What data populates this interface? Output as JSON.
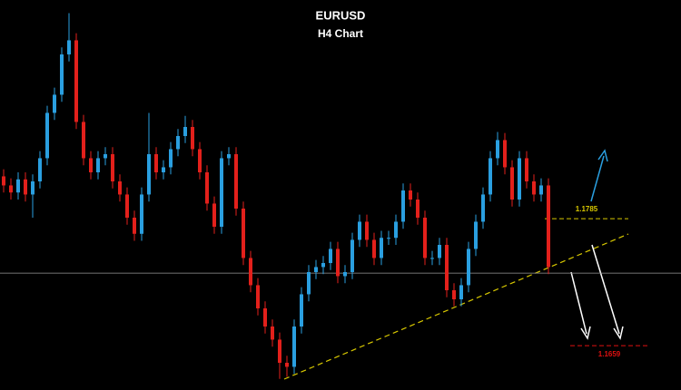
{
  "chart_data": {
    "type": "candlestick",
    "title": "EURUSD",
    "subtitle": "H4 Chart",
    "ylim": [
      1.1615,
      1.2002
    ],
    "up_color": "#2a9fe0",
    "down_color": "#e3201b",
    "open": [
      1.1827,
      1.1818,
      1.1811,
      1.1824,
      1.1809,
      1.1822,
      1.1845,
      1.189,
      1.1908,
      1.1948,
      1.1962,
      1.1881,
      1.1845,
      1.1831,
      1.1845,
      1.1849,
      1.1822,
      1.1809,
      1.1786,
      1.177,
      1.1809,
      1.1849,
      1.1831,
      1.1836,
      1.1854,
      1.1867,
      1.1876,
      1.1854,
      1.1831,
      1.18,
      1.1777,
      1.1845,
      1.1849,
      1.1795,
      1.1746,
      1.1719,
      1.1696,
      1.1678,
      1.1665,
      1.1642,
      1.1638,
      1.1678,
      1.171,
      1.1732,
      1.1737,
      1.1741,
      1.1755,
      1.1728,
      1.1732,
      1.1764,
      1.1782,
      1.1764,
      1.1746,
      1.1766,
      1.1766,
      1.1782,
      1.1813,
      1.1804,
      1.1786,
      1.1746,
      1.1746,
      1.1759,
      1.1714,
      1.1705,
      1.1719,
      1.1755,
      1.1782,
      1.1809,
      1.1845,
      1.1863,
      1.1836,
      1.1804,
      1.1845,
      1.1822,
      1.1809,
      1.1818
    ],
    "high": [
      1.1834,
      1.1825,
      1.1831,
      1.1831,
      1.1829,
      1.1852,
      1.1897,
      1.1915,
      1.1955,
      1.1989,
      1.1969,
      1.1888,
      1.1852,
      1.1852,
      1.1856,
      1.1856,
      1.1829,
      1.1816,
      1.1793,
      1.1816,
      1.189,
      1.1856,
      1.1843,
      1.1861,
      1.1874,
      1.1887,
      1.1883,
      1.1861,
      1.1838,
      1.1807,
      1.1852,
      1.1856,
      1.1856,
      1.1802,
      1.1753,
      1.1726,
      1.1703,
      1.1685,
      1.1672,
      1.1649,
      1.1685,
      1.1717,
      1.1739,
      1.1744,
      1.1748,
      1.1762,
      1.1762,
      1.1739,
      1.1771,
      1.1789,
      1.1789,
      1.1771,
      1.1773,
      1.1773,
      1.1789,
      1.182,
      1.182,
      1.1811,
      1.1793,
      1.1753,
      1.1766,
      1.1766,
      1.1721,
      1.1726,
      1.1762,
      1.1789,
      1.1816,
      1.1852,
      1.1871,
      1.187,
      1.1843,
      1.1852,
      1.1852,
      1.1829,
      1.1825,
      1.1825
    ],
    "low": [
      1.1811,
      1.1804,
      1.1804,
      1.1802,
      1.1786,
      1.1815,
      1.1838,
      1.1883,
      1.1901,
      1.1941,
      1.1874,
      1.1838,
      1.1824,
      1.1824,
      1.1838,
      1.1815,
      1.1802,
      1.1779,
      1.1763,
      1.1763,
      1.1802,
      1.1824,
      1.1824,
      1.1829,
      1.1847,
      1.186,
      1.1847,
      1.1824,
      1.1793,
      1.177,
      1.177,
      1.1838,
      1.1788,
      1.1739,
      1.1712,
      1.1689,
      1.1671,
      1.1658,
      1.1626,
      1.1628,
      1.1631,
      1.1671,
      1.1703,
      1.1725,
      1.173,
      1.1734,
      1.1721,
      1.1721,
      1.1725,
      1.1757,
      1.1757,
      1.1739,
      1.1739,
      1.1759,
      1.1759,
      1.1775,
      1.1797,
      1.1779,
      1.1739,
      1.1739,
      1.1739,
      1.1707,
      1.1698,
      1.1698,
      1.1712,
      1.1748,
      1.1775,
      1.1802,
      1.1838,
      1.1829,
      1.1797,
      1.1797,
      1.1815,
      1.1802,
      1.1802,
      1.173
    ],
    "close": [
      1.1818,
      1.1811,
      1.1824,
      1.1809,
      1.1822,
      1.1845,
      1.189,
      1.1908,
      1.1948,
      1.1962,
      1.1881,
      1.1845,
      1.1831,
      1.1845,
      1.1849,
      1.1822,
      1.1809,
      1.1786,
      1.177,
      1.1809,
      1.1849,
      1.1831,
      1.1836,
      1.1854,
      1.1867,
      1.1876,
      1.1854,
      1.1831,
      1.18,
      1.1777,
      1.1845,
      1.1849,
      1.1795,
      1.1746,
      1.1719,
      1.1696,
      1.1678,
      1.1665,
      1.1642,
      1.1638,
      1.1678,
      1.171,
      1.1732,
      1.1737,
      1.1741,
      1.1755,
      1.1728,
      1.1732,
      1.1764,
      1.1782,
      1.1764,
      1.1746,
      1.1766,
      1.1766,
      1.1782,
      1.1813,
      1.1804,
      1.1786,
      1.1746,
      1.1746,
      1.1759,
      1.1714,
      1.1705,
      1.1719,
      1.1755,
      1.1782,
      1.1809,
      1.1845,
      1.1863,
      1.1836,
      1.1804,
      1.1845,
      1.1822,
      1.1809,
      1.1818,
      1.1737
    ],
    "current_price": 1.1731,
    "levels": [
      {
        "value": 1.1785,
        "color": "#d8c800"
      },
      {
        "value": 1.1659,
        "color": "#e01010"
      }
    ]
  }
}
